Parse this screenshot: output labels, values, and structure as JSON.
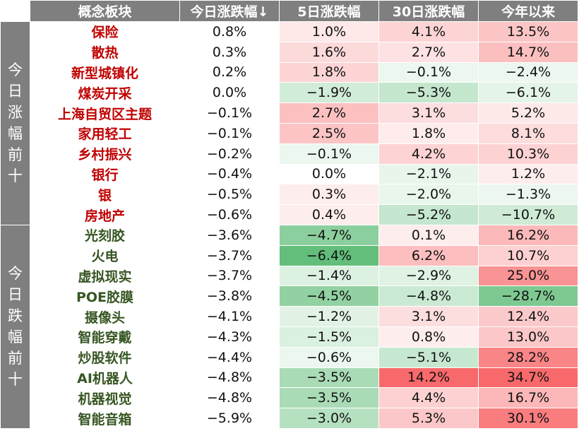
{
  "headers": [
    "概念板块",
    "今日涨跌幅↓",
    "5日涨跌幅",
    "30日涨跌幅",
    "今年以来"
  ],
  "groups": [
    {
      "label": "今日涨幅前十",
      "type": "up",
      "rows": [
        {
          "name": "保险",
          "values": [
            "0.8%",
            "1.0%",
            "4.1%",
            "13.5%"
          ]
        },
        {
          "name": "散热",
          "values": [
            "0.3%",
            "1.6%",
            "2.7%",
            "14.7%"
          ]
        },
        {
          "name": "新型城镇化",
          "values": [
            "0.2%",
            "1.8%",
            "−0.1%",
            "−2.4%"
          ]
        },
        {
          "name": "煤炭开采",
          "values": [
            "0.0%",
            "−1.9%",
            "−5.3%",
            "−6.1%"
          ]
        },
        {
          "name": "上海自贸区主题",
          "values": [
            "−0.1%",
            "2.7%",
            "3.1%",
            "5.2%"
          ]
        },
        {
          "name": "家用轻工",
          "values": [
            "−0.1%",
            "2.5%",
            "1.8%",
            "8.1%"
          ]
        },
        {
          "name": "乡村振兴",
          "values": [
            "−0.2%",
            "−0.1%",
            "4.2%",
            "10.3%"
          ]
        },
        {
          "name": "银行",
          "values": [
            "−0.4%",
            "0.0%",
            "−2.1%",
            "1.2%"
          ]
        },
        {
          "name": "银",
          "values": [
            "−0.5%",
            "0.3%",
            "−2.0%",
            "−1.3%"
          ]
        },
        {
          "name": "房地产",
          "values": [
            "−0.6%",
            "0.4%",
            "−5.2%",
            "−10.7%"
          ]
        }
      ]
    },
    {
      "label": "今日跌幅前十",
      "type": "down",
      "rows": [
        {
          "name": "光刻胶",
          "values": [
            "−3.6%",
            "−4.7%",
            "0.1%",
            "16.2%"
          ]
        },
        {
          "name": "火电",
          "values": [
            "−3.7%",
            "−6.4%",
            "6.2%",
            "10.7%"
          ]
        },
        {
          "name": "虚拟现实",
          "values": [
            "−3.7%",
            "−1.4%",
            "−2.9%",
            "25.0%"
          ]
        },
        {
          "name": "POE胶膜",
          "values": [
            "−3.8%",
            "−4.5%",
            "−4.8%",
            "−28.7%"
          ]
        },
        {
          "name": "摄像头",
          "values": [
            "−4.1%",
            "−1.2%",
            "3.1%",
            "12.4%"
          ]
        },
        {
          "name": "智能穿戴",
          "values": [
            "−4.3%",
            "−1.5%",
            "0.8%",
            "13.0%"
          ]
        },
        {
          "name": "炒股软件",
          "values": [
            "−4.4%",
            "−0.6%",
            "−5.1%",
            "28.2%"
          ]
        },
        {
          "name": "AI机器人",
          "values": [
            "−4.8%",
            "−3.5%",
            "14.2%",
            "34.7%"
          ]
        },
        {
          "name": "机器视觉",
          "values": [
            "−4.8%",
            "−3.5%",
            "4.4%",
            "16.7%"
          ]
        },
        {
          "name": "智能音箱",
          "values": [
            "−5.9%",
            "−3.0%",
            "5.3%",
            "30.1%"
          ]
        }
      ]
    }
  ],
  "color_scale": {
    "positive": "#f8696b",
    "negative": "#63be7b",
    "neutral": "#ffffff"
  }
}
